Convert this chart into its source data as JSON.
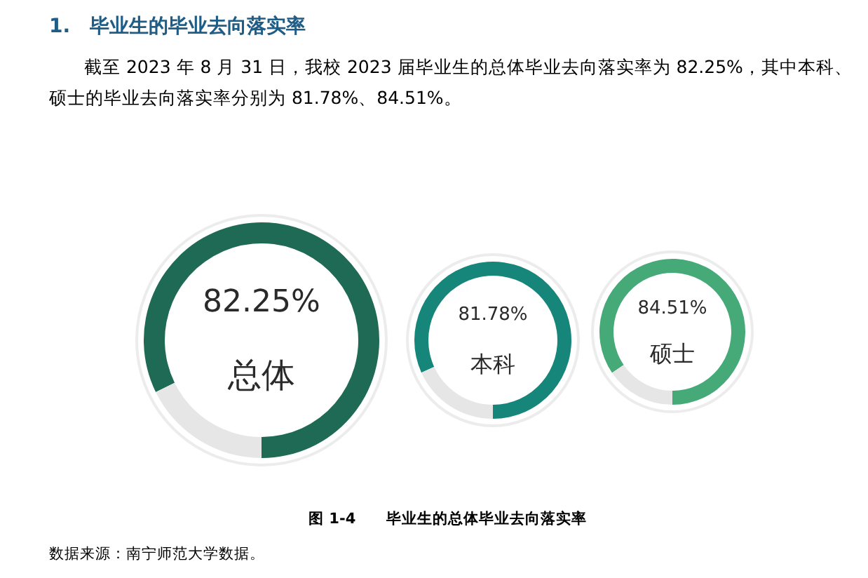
{
  "chart_data": [
    {
      "type": "donut",
      "title": "1.　毕业生的毕业去向落实率",
      "subtitle": "截至 2023 年 8 月 31 日，我校 2023 届毕业生的总体毕业去向落实率为 82.25%，其中本科、硕士的毕业去向落实率分别为 81.78%、84.51%。",
      "categories": [
        "总体",
        null
      ],
      "values": [
        82.25,
        17.75
      ],
      "colors": [
        "#1e6a55",
        "#e6e6e6"
      ],
      "value_labels": [
        "82.25%",
        null
      ]
    },
    {
      "type": "donut",
      "categories": [
        "本科",
        null
      ],
      "values": [
        81.78,
        18.22
      ],
      "colors": [
        "#16857a",
        "#e6e6e6"
      ],
      "value_labels": [
        "81.78%",
        null
      ]
    },
    {
      "type": "donut",
      "categories": [
        "硕士",
        null
      ],
      "values": [
        84.51,
        15.49
      ],
      "colors": [
        "#45a978",
        "#e6e6e6"
      ],
      "value_labels": [
        "84.51%",
        null
      ],
      "annotations": [
        "图 1-4　　毕业生的总体毕业去向落实率",
        "数据来源：南宁师范大学数据。"
      ]
    }
  ]
}
